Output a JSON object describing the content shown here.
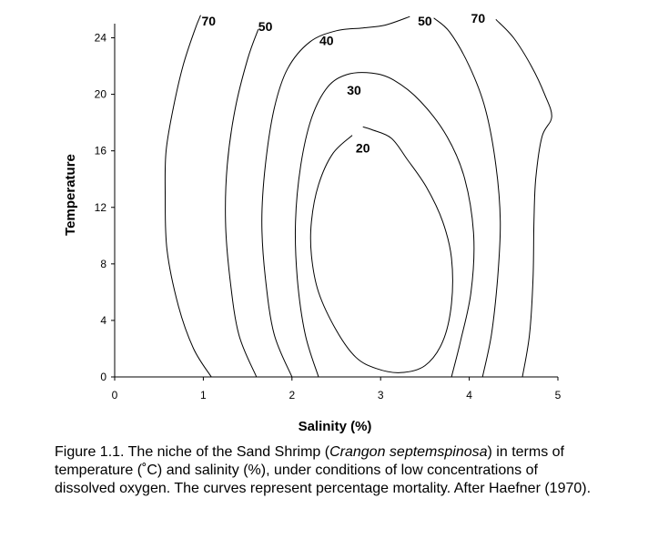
{
  "chart_data": {
    "type": "contour",
    "xlabel": "Salinity (%)",
    "ylabel": "Temperature",
    "xlim": [
      0,
      5
    ],
    "ylim": [
      0,
      25
    ],
    "xticks": [
      "0",
      "1",
      "2",
      "3",
      "4",
      "5"
    ],
    "yticks": [
      "0",
      "4",
      "8",
      "12",
      "16",
      "20",
      "24"
    ],
    "grid": false,
    "legend": "none",
    "line_color": "#000000",
    "contours": [
      {
        "label": "70",
        "points": [
          [
            1.09,
            0
          ],
          [
            0.89,
            2
          ],
          [
            0.72,
            5
          ],
          [
            0.59,
            9
          ],
          [
            0.57,
            13
          ],
          [
            0.58,
            16
          ],
          [
            0.66,
            19
          ],
          [
            0.77,
            22
          ],
          [
            0.9,
            24.5
          ],
          [
            0.97,
            25.6
          ]
        ],
        "label_at": [
          1.06,
          25.2
        ]
      },
      {
        "label": "50",
        "points": [
          [
            1.6,
            0
          ],
          [
            1.4,
            3
          ],
          [
            1.3,
            7
          ],
          [
            1.25,
            11
          ],
          [
            1.27,
            15
          ],
          [
            1.36,
            19
          ],
          [
            1.5,
            22.5
          ],
          [
            1.62,
            24.6
          ]
        ],
        "label_at": [
          1.7,
          24.8
        ]
      },
      {
        "label": "40",
        "points": [
          [
            2.0,
            0
          ],
          [
            1.8,
            3
          ],
          [
            1.7,
            7
          ],
          [
            1.66,
            11
          ],
          [
            1.7,
            15
          ],
          [
            1.8,
            19
          ],
          [
            1.95,
            21.8
          ],
          [
            2.2,
            23.7
          ],
          [
            2.5,
            24.5
          ],
          [
            2.8,
            24.7
          ],
          [
            3.05,
            24.9
          ],
          [
            3.33,
            25.5
          ]
        ],
        "label_at": [
          2.39,
          23.8
        ]
      },
      {
        "label": "30",
        "points": [
          [
            2.3,
            0
          ],
          [
            2.15,
            3
          ],
          [
            2.06,
            7
          ],
          [
            2.04,
            11
          ],
          [
            2.1,
            15
          ],
          [
            2.22,
            18.3
          ],
          [
            2.4,
            20.5
          ],
          [
            2.62,
            21.4
          ],
          [
            2.9,
            21.5
          ],
          [
            3.15,
            21
          ],
          [
            3.45,
            19.5
          ],
          [
            3.75,
            17
          ],
          [
            3.95,
            14
          ],
          [
            4.05,
            10
          ],
          [
            4.02,
            6
          ],
          [
            3.9,
            2.5
          ],
          [
            3.8,
            0
          ]
        ],
        "label_at": [
          2.7,
          20.3
        ]
      },
      {
        "label": "20",
        "points": [
          [
            2.68,
            17.1
          ],
          [
            2.46,
            15.8
          ],
          [
            2.3,
            13.6
          ],
          [
            2.22,
            11
          ],
          [
            2.22,
            8.6
          ],
          [
            2.3,
            6
          ],
          [
            2.5,
            3.3
          ],
          [
            2.72,
            1.4
          ],
          [
            2.95,
            0.6
          ],
          [
            3.22,
            0.3
          ],
          [
            3.5,
            0.8
          ],
          [
            3.7,
            2.5
          ],
          [
            3.8,
            5.2
          ],
          [
            3.8,
            8.4
          ],
          [
            3.7,
            11
          ],
          [
            3.52,
            13.4
          ],
          [
            3.3,
            15.4
          ],
          [
            3.12,
            16.9
          ],
          [
            2.9,
            17.5
          ],
          [
            2.8,
            17.7
          ]
        ],
        "label_at": [
          2.8,
          16.2
        ]
      },
      {
        "label": "50",
        "points": [
          [
            4.15,
            0
          ],
          [
            4.25,
            3
          ],
          [
            4.32,
            7
          ],
          [
            4.35,
            11
          ],
          [
            4.3,
            15
          ],
          [
            4.18,
            19
          ],
          [
            4.0,
            22
          ],
          [
            3.78,
            24.4
          ],
          [
            3.6,
            25.4
          ]
        ],
        "label_at": [
          3.5,
          25.2
        ]
      },
      {
        "label": "70",
        "points": [
          [
            4.6,
            0
          ],
          [
            4.68,
            3
          ],
          [
            4.72,
            7
          ],
          [
            4.73,
            11
          ],
          [
            4.75,
            14
          ],
          [
            4.82,
            17
          ],
          [
            4.93,
            18.4
          ],
          [
            4.85,
            20
          ],
          [
            4.7,
            22
          ],
          [
            4.5,
            24
          ],
          [
            4.3,
            25.3
          ]
        ],
        "label_at": [
          4.1,
          25.4
        ]
      }
    ]
  },
  "caption": {
    "prefix": "Figure 1.1.   The niche of the Sand Shrimp (",
    "species": "Crangon septemspinosa",
    "suffix": ") in terms of temperature (˚C) and salinity (%), under conditions of low concentrations of dissolved oxygen.  The curves represent percentage mortality.  After Haefner (1970)."
  }
}
